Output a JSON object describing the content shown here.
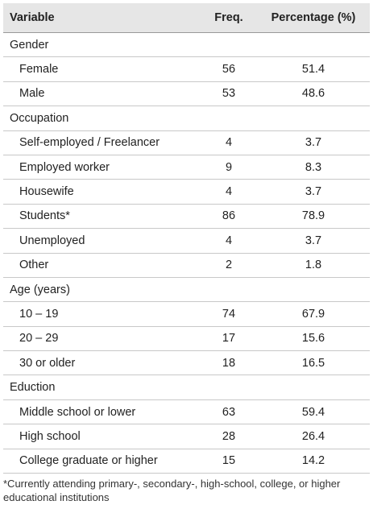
{
  "table": {
    "header": [
      "Variable",
      "Freq.",
      "Percentage (%)"
    ],
    "rows": [
      [
        "Gender"
      ],
      [
        "Female",
        56,
        51.4
      ],
      [
        "Male",
        53,
        48.6
      ],
      [
        "Occupation"
      ],
      [
        "Self-employed / Freelancer",
        4,
        3.7
      ],
      [
        "Employed worker",
        9,
        8.3
      ],
      [
        "Housewife",
        4,
        3.7
      ],
      [
        "Students*",
        86,
        78.9
      ],
      [
        "Unemployed",
        4,
        3.7
      ],
      [
        "Other",
        2,
        1.8
      ],
      [
        "Age (years)"
      ],
      [
        "10 – 19",
        74,
        67.9
      ],
      [
        "20 – 29",
        17,
        15.6
      ],
      [
        "30 or older",
        18,
        16.5
      ],
      [
        "Eduction"
      ],
      [
        "Middle school or lower",
        63,
        59.4
      ],
      [
        "High school",
        28,
        26.4
      ],
      [
        "College graduate or higher",
        15,
        14.2
      ]
    ],
    "footnote": "*Currently attending primary-, secondary-, high-school, college, or higher educational institutions"
  }
}
